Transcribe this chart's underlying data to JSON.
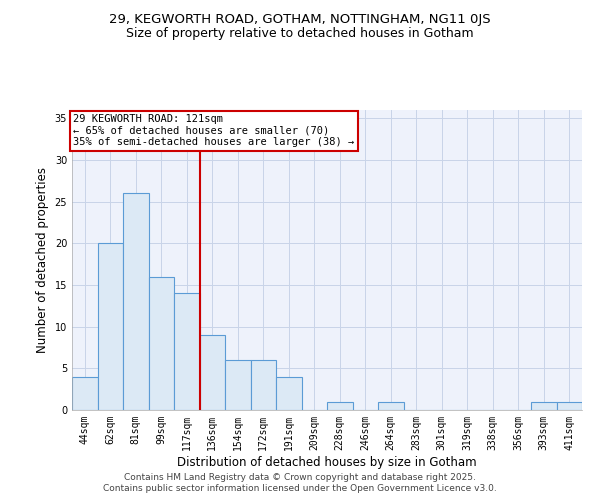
{
  "title": "29, KEGWORTH ROAD, GOTHAM, NOTTINGHAM, NG11 0JS",
  "subtitle": "Size of property relative to detached houses in Gotham",
  "xlabel": "Distribution of detached houses by size in Gotham",
  "ylabel": "Number of detached properties",
  "categories": [
    "44sqm",
    "62sqm",
    "81sqm",
    "99sqm",
    "117sqm",
    "136sqm",
    "154sqm",
    "172sqm",
    "191sqm",
    "209sqm",
    "228sqm",
    "246sqm",
    "264sqm",
    "283sqm",
    "301sqm",
    "319sqm",
    "338sqm",
    "356sqm",
    "393sqm",
    "411sqm"
  ],
  "values": [
    4,
    20,
    26,
    16,
    14,
    9,
    6,
    6,
    4,
    0,
    1,
    0,
    1,
    0,
    0,
    0,
    0,
    0,
    1,
    1
  ],
  "bar_color": "#dce9f5",
  "bar_edge_color": "#5b9bd5",
  "grid_color": "#c8d4e8",
  "background_color": "#eef2fb",
  "vline_x_index": 4.5,
  "vline_color": "#cc0000",
  "annotation_text": "29 KEGWORTH ROAD: 121sqm\n← 65% of detached houses are smaller (70)\n35% of semi-detached houses are larger (38) →",
  "annotation_box_color": "#ffffff",
  "annotation_border_color": "#cc0000",
  "ylim": [
    0,
    36
  ],
  "yticks": [
    0,
    5,
    10,
    15,
    20,
    25,
    30,
    35
  ],
  "footnote1": "Contains HM Land Registry data © Crown copyright and database right 2025.",
  "footnote2": "Contains public sector information licensed under the Open Government Licence v3.0.",
  "title_fontsize": 9.5,
  "subtitle_fontsize": 9,
  "tick_fontsize": 7,
  "label_fontsize": 8.5,
  "footnote_fontsize": 6.5,
  "annot_fontsize": 7.5
}
